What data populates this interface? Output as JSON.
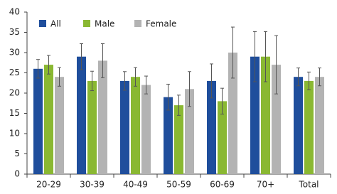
{
  "chart_data": {
    "type": "bar",
    "categories": [
      "20-29",
      "30-39",
      "40-49",
      "50-59",
      "60-69",
      "70+",
      "Total"
    ],
    "series": [
      {
        "name": "All",
        "color": "#1f4e9c",
        "values": [
          26,
          29,
          23,
          19,
          23,
          29,
          24
        ],
        "errors": [
          2.3,
          3.2,
          2.3,
          3.2,
          4.2,
          6.2,
          2.2
        ]
      },
      {
        "name": "Male",
        "color": "#8ab832",
        "values": [
          27,
          23,
          24,
          17,
          18,
          29,
          23
        ],
        "errors": [
          2.3,
          2.4,
          2.3,
          2.5,
          3.2,
          6.2,
          2.2
        ]
      },
      {
        "name": "Female",
        "color": "#b3b3b3",
        "values": [
          24,
          28,
          22,
          21,
          30,
          27,
          24
        ],
        "errors": [
          2.3,
          4.2,
          2.2,
          4.3,
          6.3,
          7.2,
          2.2
        ]
      }
    ],
    "ylim": [
      0,
      40
    ],
    "yticks": [
      0,
      5,
      10,
      15,
      20,
      25,
      30,
      35,
      40
    ]
  }
}
